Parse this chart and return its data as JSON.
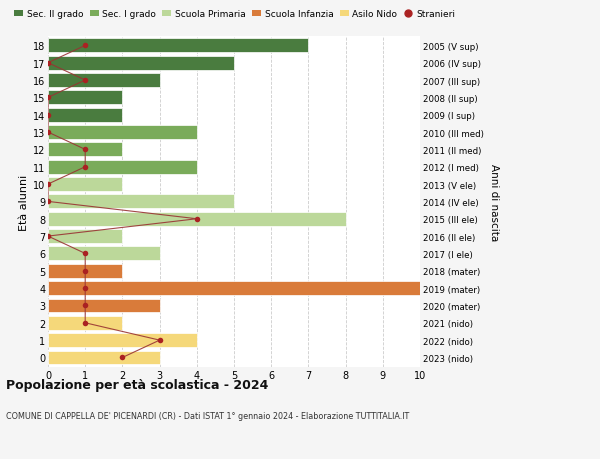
{
  "ages": [
    18,
    17,
    16,
    15,
    14,
    13,
    12,
    11,
    10,
    9,
    8,
    7,
    6,
    5,
    4,
    3,
    2,
    1,
    0
  ],
  "years": [
    "2005 (V sup)",
    "2006 (IV sup)",
    "2007 (III sup)",
    "2008 (II sup)",
    "2009 (I sup)",
    "2010 (III med)",
    "2011 (II med)",
    "2012 (I med)",
    "2013 (V ele)",
    "2014 (IV ele)",
    "2015 (III ele)",
    "2016 (II ele)",
    "2017 (I ele)",
    "2018 (mater)",
    "2019 (mater)",
    "2020 (mater)",
    "2021 (nido)",
    "2022 (nido)",
    "2023 (nido)"
  ],
  "bar_values": [
    7,
    5,
    3,
    2,
    2,
    4,
    2,
    4,
    2,
    5,
    8,
    2,
    3,
    2,
    10,
    3,
    2,
    4,
    3
  ],
  "bar_colors": [
    "#4a7c3f",
    "#4a7c3f",
    "#4a7c3f",
    "#4a7c3f",
    "#4a7c3f",
    "#7aab5a",
    "#7aab5a",
    "#7aab5a",
    "#bcd89a",
    "#bcd89a",
    "#bcd89a",
    "#bcd89a",
    "#bcd89a",
    "#d97b3a",
    "#d97b3a",
    "#d97b3a",
    "#f5d87a",
    "#f5d87a",
    "#f5d87a"
  ],
  "stranieri_values": [
    1,
    0,
    1,
    0,
    0,
    0,
    1,
    1,
    0,
    0,
    4,
    0,
    1,
    1,
    1,
    1,
    1,
    3,
    2
  ],
  "legend_labels": [
    "Sec. II grado",
    "Sec. I grado",
    "Scuola Primaria",
    "Scuola Infanzia",
    "Asilo Nido",
    "Stranieri"
  ],
  "legend_colors": [
    "#4a7c3f",
    "#7aab5a",
    "#bcd89a",
    "#d97b3a",
    "#f5d87a",
    "#b22222"
  ],
  "title": "Popolazione per età scolastica - 2024",
  "subtitle": "COMUNE DI CAPPELLA DE' PICENARDI (CR) - Dati ISTAT 1° gennaio 2024 - Elaborazione TUTTITALIA.IT",
  "xlabel_left": "Età alunni",
  "ylabel_right": "Anni di nascita",
  "xlim": [
    0,
    10
  ],
  "bar_height": 0.8,
  "grid_color": "#cccccc",
  "bg_color": "#f5f5f5",
  "plot_bg": "#ffffff",
  "stranieri_color": "#aa2222",
  "stranieri_line_color": "#993333"
}
